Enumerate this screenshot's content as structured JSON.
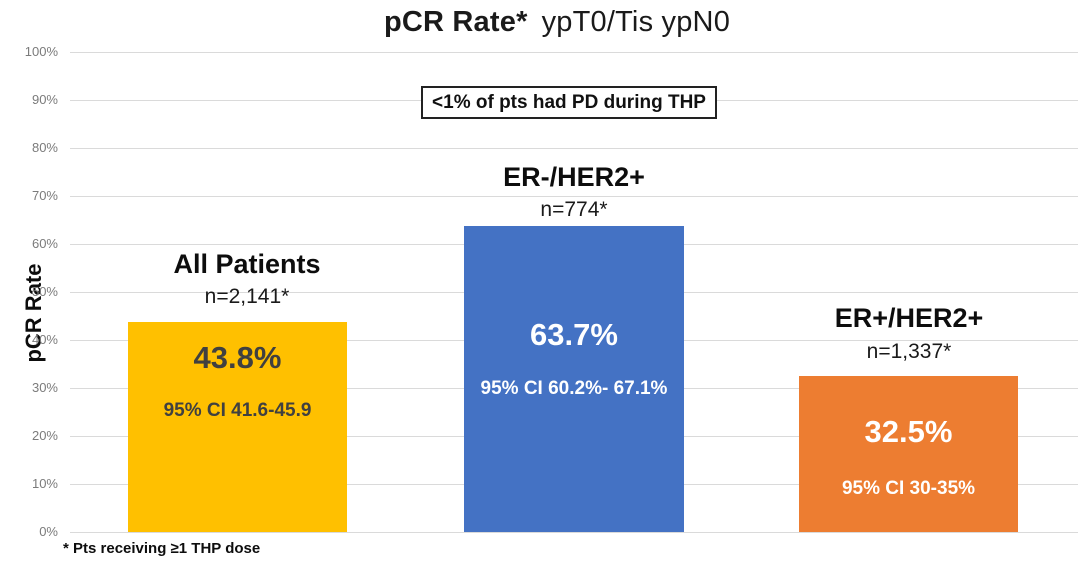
{
  "chart_data": {
    "type": "bar",
    "title": "pCR Rate* ypT0/Tis ypN0",
    "title_bold": "pCR Rate*",
    "title_rest": "ypT0/Tis ypN0",
    "ylabel": "pCR Rate",
    "xlabel": "",
    "ylim": [
      0,
      100
    ],
    "grid": true,
    "legend": "none",
    "yticks": [
      "100%",
      "90%",
      "80%",
      "70%",
      "60%",
      "50%",
      "40%",
      "30%",
      "20%",
      "10%",
      "0%"
    ],
    "annotation": "<1% of pts had PD during THP",
    "footnote": "* Pts receiving ≥1 THP dose",
    "categories": [
      "All Patients",
      "ER-/HER2+",
      "ER+/HER2+"
    ],
    "values": [
      43.8,
      63.7,
      32.5
    ],
    "bars": [
      {
        "label": "All Patients",
        "n": "n=2,141*",
        "value": 43.8,
        "value_label": "43.8%",
        "ci": "95% CI 41.6-45.9",
        "color": "#FFC000",
        "text_color": "#404040"
      },
      {
        "label": "ER-/HER2+",
        "n": "n=774*",
        "value": 63.7,
        "value_label": "63.7%",
        "ci": "95% CI 60.2%- 67.1%",
        "color": "#4472C4",
        "text_color": "#FFFFFF"
      },
      {
        "label": "ER+/HER2+",
        "n": "n=1,337*",
        "value": 32.5,
        "value_label": "32.5%",
        "ci": "95% CI 30-35%",
        "color": "#ED7D31",
        "text_color": "#FFFFFF"
      }
    ],
    "axis_colors": {
      "tick_label": "#7b7b7b",
      "gridline": "#dadada"
    }
  }
}
